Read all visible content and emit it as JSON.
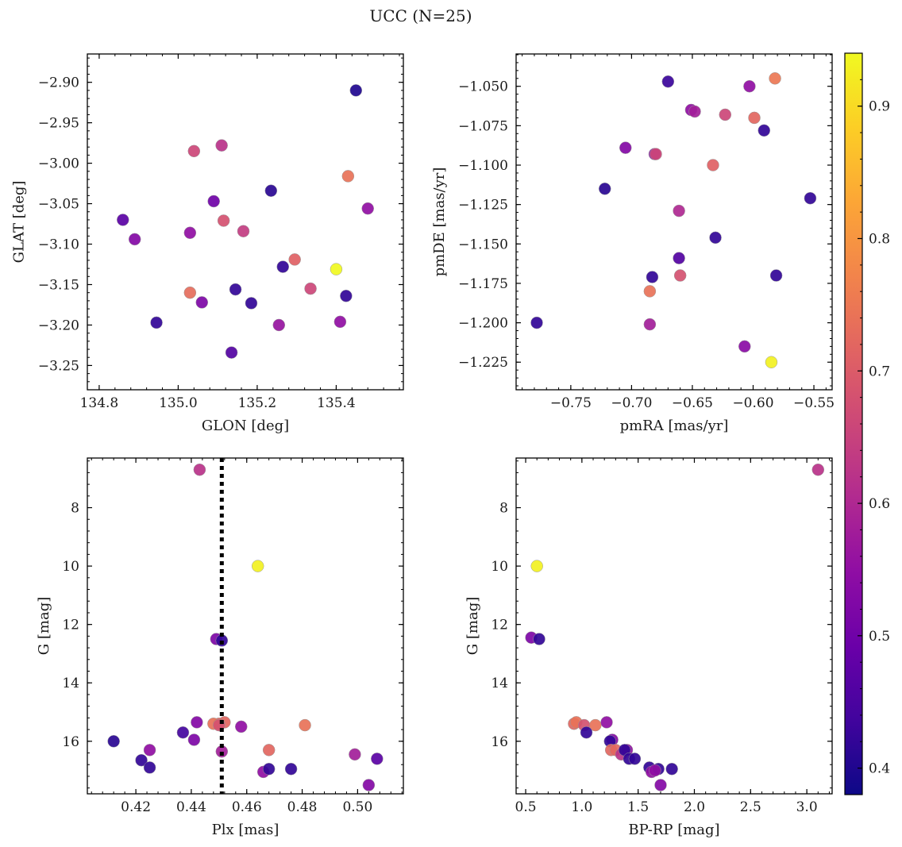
{
  "figure": {
    "title": "UCC (N=25)"
  },
  "colorbar": {
    "cmap": "plasma",
    "range": [
      0.38,
      0.94
    ],
    "ticks": [
      0.4,
      0.5,
      0.6,
      0.7,
      0.8,
      0.9
    ],
    "tick_labels": [
      "0.4",
      "0.5",
      "0.6",
      "0.7",
      "0.8",
      "0.9"
    ]
  },
  "colors": {
    "axes": "#000000",
    "membership_line": "#000000",
    "point_edge": "#999999"
  },
  "chart_data": [
    {
      "type": "scatter",
      "id": "glon_glat",
      "xlabel": "GLON [deg]",
      "ylabel": "GLAT [deg]",
      "xlim": [
        134.77,
        135.57
      ],
      "ylim": [
        -3.28,
        -2.865
      ],
      "xticks": [
        134.8,
        135.0,
        135.2,
        135.4
      ],
      "xtick_labels": [
        "134.8",
        "135.0",
        "135.2",
        "135.4"
      ],
      "yticks": [
        -2.9,
        -2.95,
        -3.0,
        -3.05,
        -3.1,
        -3.15,
        -3.2,
        -3.25
      ],
      "ytick_labels": [
        "−2.90",
        "−2.95",
        "−3.00",
        "−3.05",
        "−3.10",
        "−3.15",
        "−3.20",
        "−3.25"
      ],
      "x": [
        135.45,
        135.04,
        135.11,
        135.43,
        135.235,
        135.09,
        134.86,
        135.115,
        135.48,
        135.03,
        135.165,
        134.89,
        135.295,
        135.265,
        135.4,
        135.03,
        135.145,
        135.335,
        135.425,
        135.06,
        135.185,
        134.945,
        135.255,
        135.41,
        135.135
      ],
      "y": [
        -2.91,
        -2.985,
        -2.978,
        -3.016,
        -3.034,
        -3.047,
        -3.07,
        -3.071,
        -3.056,
        -3.086,
        -3.084,
        -3.094,
        -3.119,
        -3.128,
        -3.131,
        -3.16,
        -3.156,
        -3.155,
        -3.164,
        -3.172,
        -3.173,
        -3.197,
        -3.2,
        -3.196,
        -3.234
      ],
      "color_values": [
        0.4,
        0.66,
        0.62,
        0.74,
        0.41,
        0.5,
        0.47,
        0.68,
        0.55,
        0.55,
        0.64,
        0.53,
        0.71,
        0.42,
        0.94,
        0.73,
        0.42,
        0.66,
        0.42,
        0.52,
        0.42,
        0.42,
        0.56,
        0.55,
        0.46
      ]
    },
    {
      "type": "scatter",
      "id": "pmra_pmde",
      "xlabel": "pmRA [mas/yr]",
      "ylabel": "pmDE [mas/yr]",
      "xlim": [
        -0.795,
        -0.535
      ],
      "ylim": [
        -1.2425,
        -1.0295
      ],
      "xticks": [
        -0.75,
        -0.7,
        -0.65,
        -0.6,
        -0.55
      ],
      "xtick_labels": [
        "−0.75",
        "−0.70",
        "−0.65",
        "−0.60",
        "−0.55"
      ],
      "yticks": [
        -1.05,
        -1.075,
        -1.1,
        -1.125,
        -1.15,
        -1.175,
        -1.2,
        -1.225
      ],
      "ytick_labels": [
        "−1.050",
        "−1.075",
        "−1.100",
        "−1.125",
        "−1.150",
        "−1.175",
        "−1.200",
        "−1.225"
      ],
      "x": [
        -0.67,
        -0.603,
        -0.582,
        -0.651,
        -0.648,
        -0.623,
        -0.599,
        -0.591,
        -0.705,
        -0.681,
        -0.68,
        -0.633,
        -0.722,
        -0.553,
        -0.661,
        -0.631,
        -0.661,
        -0.683,
        -0.66,
        -0.581,
        -0.685,
        -0.778,
        -0.685,
        -0.607,
        -0.585
      ],
      "y": [
        -1.047,
        -1.05,
        -1.045,
        -1.065,
        -1.066,
        -1.068,
        -1.07,
        -1.078,
        -1.089,
        -1.093,
        -1.093,
        -1.1,
        -1.115,
        -1.121,
        -1.129,
        -1.146,
        -1.159,
        -1.171,
        -1.17,
        -1.17,
        -1.18,
        -1.2,
        -1.201,
        -1.215,
        -1.225
      ],
      "color_values": [
        0.43,
        0.55,
        0.75,
        0.55,
        0.58,
        0.66,
        0.72,
        0.42,
        0.53,
        0.55,
        0.66,
        0.71,
        0.41,
        0.42,
        0.6,
        0.42,
        0.46,
        0.42,
        0.68,
        0.42,
        0.74,
        0.42,
        0.58,
        0.54,
        0.93
      ]
    },
    {
      "type": "scatter",
      "id": "plx_g",
      "xlabel": "Plx [mas]",
      "ylabel": "G [mag]",
      "xlim": [
        0.4025,
        0.5165
      ],
      "ylim": [
        17.8,
        6.3
      ],
      "y_inverted": true,
      "xticks": [
        0.42,
        0.44,
        0.46,
        0.48,
        0.5
      ],
      "xtick_labels": [
        "0.42",
        "0.44",
        "0.46",
        "0.48",
        "0.50"
      ],
      "yticks": [
        8,
        10,
        12,
        14,
        16
      ],
      "ytick_labels": [
        "8",
        "10",
        "12",
        "14",
        "16"
      ],
      "vline": 0.451,
      "x": [
        0.443,
        0.464,
        0.449,
        0.451,
        0.452,
        0.45,
        0.448,
        0.442,
        0.458,
        0.481,
        0.437,
        0.441,
        0.412,
        0.425,
        0.451,
        0.468,
        0.422,
        0.499,
        0.425,
        0.507,
        0.466,
        0.468,
        0.476,
        0.504,
        0.45
      ],
      "y": [
        6.7,
        10.0,
        12.5,
        12.55,
        15.35,
        15.4,
        15.4,
        15.35,
        15.5,
        15.45,
        15.7,
        15.95,
        16.0,
        16.3,
        16.35,
        16.3,
        16.65,
        16.45,
        16.9,
        16.6,
        17.05,
        16.95,
        16.95,
        17.5,
        15.45
      ],
      "color_values": [
        0.62,
        0.93,
        0.52,
        0.42,
        0.72,
        0.72,
        0.74,
        0.53,
        0.55,
        0.74,
        0.44,
        0.52,
        0.41,
        0.55,
        0.58,
        0.72,
        0.42,
        0.58,
        0.42,
        0.47,
        0.55,
        0.42,
        0.42,
        0.53,
        0.68
      ]
    },
    {
      "type": "scatter",
      "id": "bprp_g",
      "xlabel": "BP-RP [mag]",
      "ylabel": "G [mag]",
      "xlim": [
        0.415,
        3.225
      ],
      "ylim": [
        17.8,
        6.3
      ],
      "y_inverted": true,
      "xticks": [
        0.5,
        1.0,
        1.5,
        2.0,
        2.5,
        3.0
      ],
      "xtick_labels": [
        "0.5",
        "1.0",
        "1.5",
        "2.0",
        "2.5",
        "3.0"
      ],
      "yticks": [
        8,
        10,
        12,
        14,
        16
      ],
      "ytick_labels": [
        "8",
        "10",
        "12",
        "14",
        "16"
      ],
      "x": [
        3.1,
        0.6,
        0.55,
        0.62,
        0.93,
        0.95,
        1.02,
        1.12,
        1.22,
        1.27,
        1.04,
        1.25,
        1.26,
        1.3,
        1.35,
        1.4,
        1.38,
        1.42,
        1.47,
        1.6,
        1.62,
        1.68,
        1.8,
        1.7,
        1.65
      ],
      "y": [
        6.7,
        10.0,
        12.45,
        12.5,
        15.4,
        15.35,
        15.45,
        15.45,
        15.35,
        15.95,
        15.7,
        16.0,
        16.3,
        16.3,
        16.45,
        16.3,
        16.3,
        16.6,
        16.6,
        16.9,
        17.05,
        16.95,
        16.95,
        17.5,
        17.0
      ],
      "color_values": [
        0.62,
        0.93,
        0.52,
        0.42,
        0.72,
        0.74,
        0.68,
        0.74,
        0.55,
        0.53,
        0.42,
        0.42,
        0.72,
        0.72,
        0.62,
        0.55,
        0.42,
        0.42,
        0.42,
        0.42,
        0.55,
        0.42,
        0.42,
        0.53,
        0.55
      ]
    }
  ]
}
